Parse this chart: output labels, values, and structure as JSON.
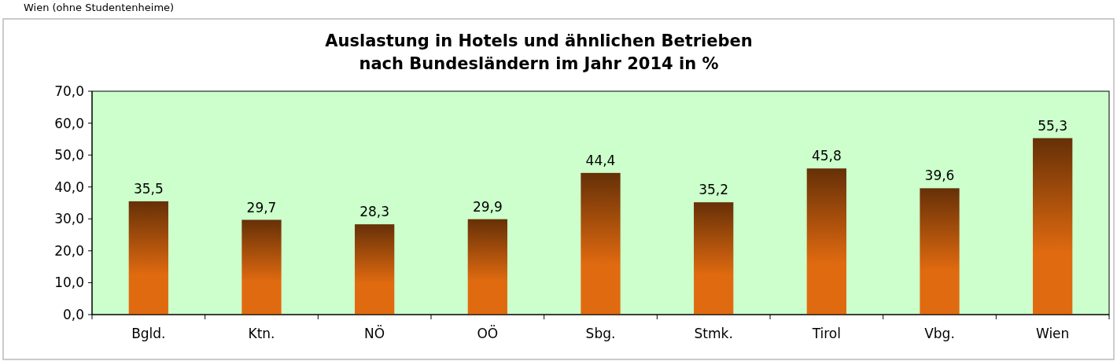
{
  "chart_data": {
    "type": "bar",
    "title": "Auslastung in Hotels und ähnlichen Betrieben\nnach Bundesländern im Jahr 2014 in %",
    "annotations": [
      "Wien (ohne Studentenheime)"
    ],
    "categories": [
      "Bgld.",
      "Ktn.",
      "NÖ",
      "OÖ",
      "Sbg.",
      "Stmk.",
      "Tirol",
      "Vbg.",
      "Wien"
    ],
    "values": [
      35.5,
      29.7,
      28.3,
      29.9,
      44.4,
      35.2,
      45.8,
      39.6,
      55.3
    ],
    "color": "#e06a10",
    "ylim": [
      0,
      70
    ],
    "yticks": [
      {
        "value": 0,
        "label": "0,0"
      },
      {
        "value": 10,
        "label": "10,0"
      },
      {
        "value": 20,
        "label": "20,0"
      },
      {
        "value": 30,
        "label": "30,0"
      },
      {
        "value": 40,
        "label": "40,0"
      },
      {
        "value": 50,
        "label": "50,0"
      },
      {
        "value": 60,
        "label": "60,0"
      },
      {
        "value": 70,
        "label": "70,0"
      }
    ],
    "value_labels": [
      "35,5",
      "29,7",
      "28,3",
      "29,9",
      "44,4",
      "35,2",
      "45,8",
      "39,6",
      "55,3"
    ],
    "grid": false
  }
}
